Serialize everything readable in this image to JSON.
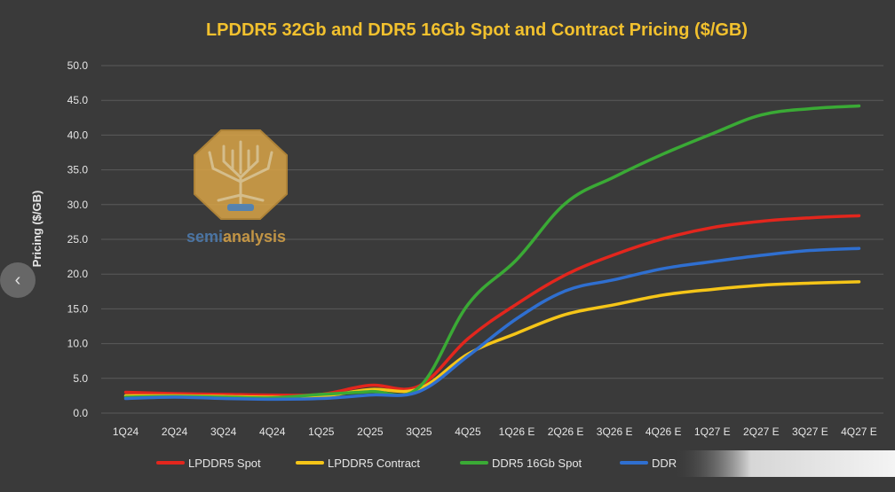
{
  "chart_data": {
    "type": "line",
    "title": "LPDDR5 32Gb and DDR5 16Gb Spot and Contract Pricing ($/GB)",
    "xlabel": "",
    "ylabel": "Pricing ($/GB)",
    "ylim": [
      0,
      50
    ],
    "yticks": [
      "0.0",
      "5.0",
      "10.0",
      "15.0",
      "20.0",
      "25.0",
      "30.0",
      "35.0",
      "40.0",
      "45.0",
      "50.0"
    ],
    "categories": [
      "1Q24",
      "2Q24",
      "3Q24",
      "4Q24",
      "1Q25",
      "2Q25",
      "3Q25",
      "4Q25",
      "1Q26 E",
      "2Q26 E",
      "3Q26 E",
      "4Q26 E",
      "1Q27 E",
      "2Q27 E",
      "3Q27 E",
      "4Q27 E"
    ],
    "series": [
      {
        "name": "LPDDR5 Spot",
        "color": "#e3261d",
        "values": [
          3.0,
          2.8,
          2.7,
          2.6,
          2.7,
          4.0,
          3.9,
          10.7,
          15.7,
          19.9,
          22.8,
          25.1,
          26.7,
          27.6,
          28.1,
          28.4
        ]
      },
      {
        "name": "LPDDR5 Contract",
        "color": "#f5c518",
        "values": [
          2.5,
          2.5,
          2.4,
          2.3,
          2.4,
          3.4,
          3.5,
          8.5,
          11.5,
          14.2,
          15.6,
          17.0,
          17.8,
          18.4,
          18.7,
          18.9
        ]
      },
      {
        "name": "DDR5 16Gb Spot",
        "color": "#3aaa35",
        "values": [
          2.3,
          2.4,
          2.3,
          2.2,
          2.7,
          3.1,
          3.7,
          15.6,
          22.1,
          30.2,
          34.0,
          37.3,
          40.2,
          42.9,
          43.8,
          44.2
        ]
      },
      {
        "name": "DDR",
        "color": "#2f6fd0",
        "values": [
          2.1,
          2.3,
          2.1,
          2.0,
          2.1,
          2.6,
          3.1,
          8.2,
          13.6,
          17.6,
          19.2,
          20.8,
          21.8,
          22.7,
          23.4,
          23.7
        ]
      }
    ]
  },
  "watermark": {
    "brand_part1": "semi",
    "brand_part2": "analysis"
  },
  "nav": {
    "prev_label": "‹"
  }
}
